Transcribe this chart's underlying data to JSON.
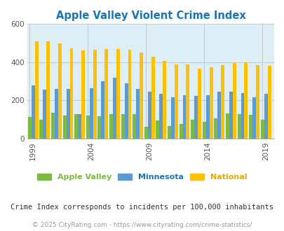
{
  "title": "Apple Valley Violent Crime Index",
  "years": [
    1999,
    2000,
    2001,
    2002,
    2003,
    2004,
    2005,
    2006,
    2007,
    2008,
    2009,
    2010,
    2011,
    2012,
    2013,
    2014,
    2015,
    2016,
    2017,
    2018,
    2019
  ],
  "apple_valley": [
    113,
    97,
    135,
    120,
    128,
    120,
    115,
    127,
    128,
    128,
    63,
    93,
    65,
    78,
    100,
    87,
    107,
    130,
    128,
    124,
    98
  ],
  "minnesota": [
    278,
    255,
    258,
    258,
    128,
    263,
    298,
    318,
    290,
    258,
    245,
    232,
    217,
    228,
    222,
    228,
    243,
    243,
    237,
    217,
    235
  ],
  "national": [
    510,
    510,
    498,
    470,
    462,
    463,
    469,
    469,
    463,
    451,
    428,
    405,
    389,
    388,
    365,
    373,
    383,
    395,
    398,
    382,
    380
  ],
  "apple_valley_color": "#7cbb3c",
  "minnesota_color": "#5b9bd5",
  "national_color": "#ffc000",
  "bg_color": "#ddeef6",
  "title_color": "#1975b4",
  "ylim": [
    0,
    600
  ],
  "yticks": [
    0,
    200,
    400,
    600
  ],
  "xlabel_ticks": [
    1999,
    2004,
    2009,
    2014,
    2019
  ],
  "subtitle": "Crime Index corresponds to incidents per 100,000 inhabitants",
  "footer": "© 2025 CityRating.com - https://www.cityrating.com/crime-statistics/",
  "legend_labels": [
    "Apple Valley",
    "Minnesota",
    "National"
  ],
  "legend_colors": [
    "#7cbb3c",
    "#1975b4",
    "#e6a800"
  ]
}
